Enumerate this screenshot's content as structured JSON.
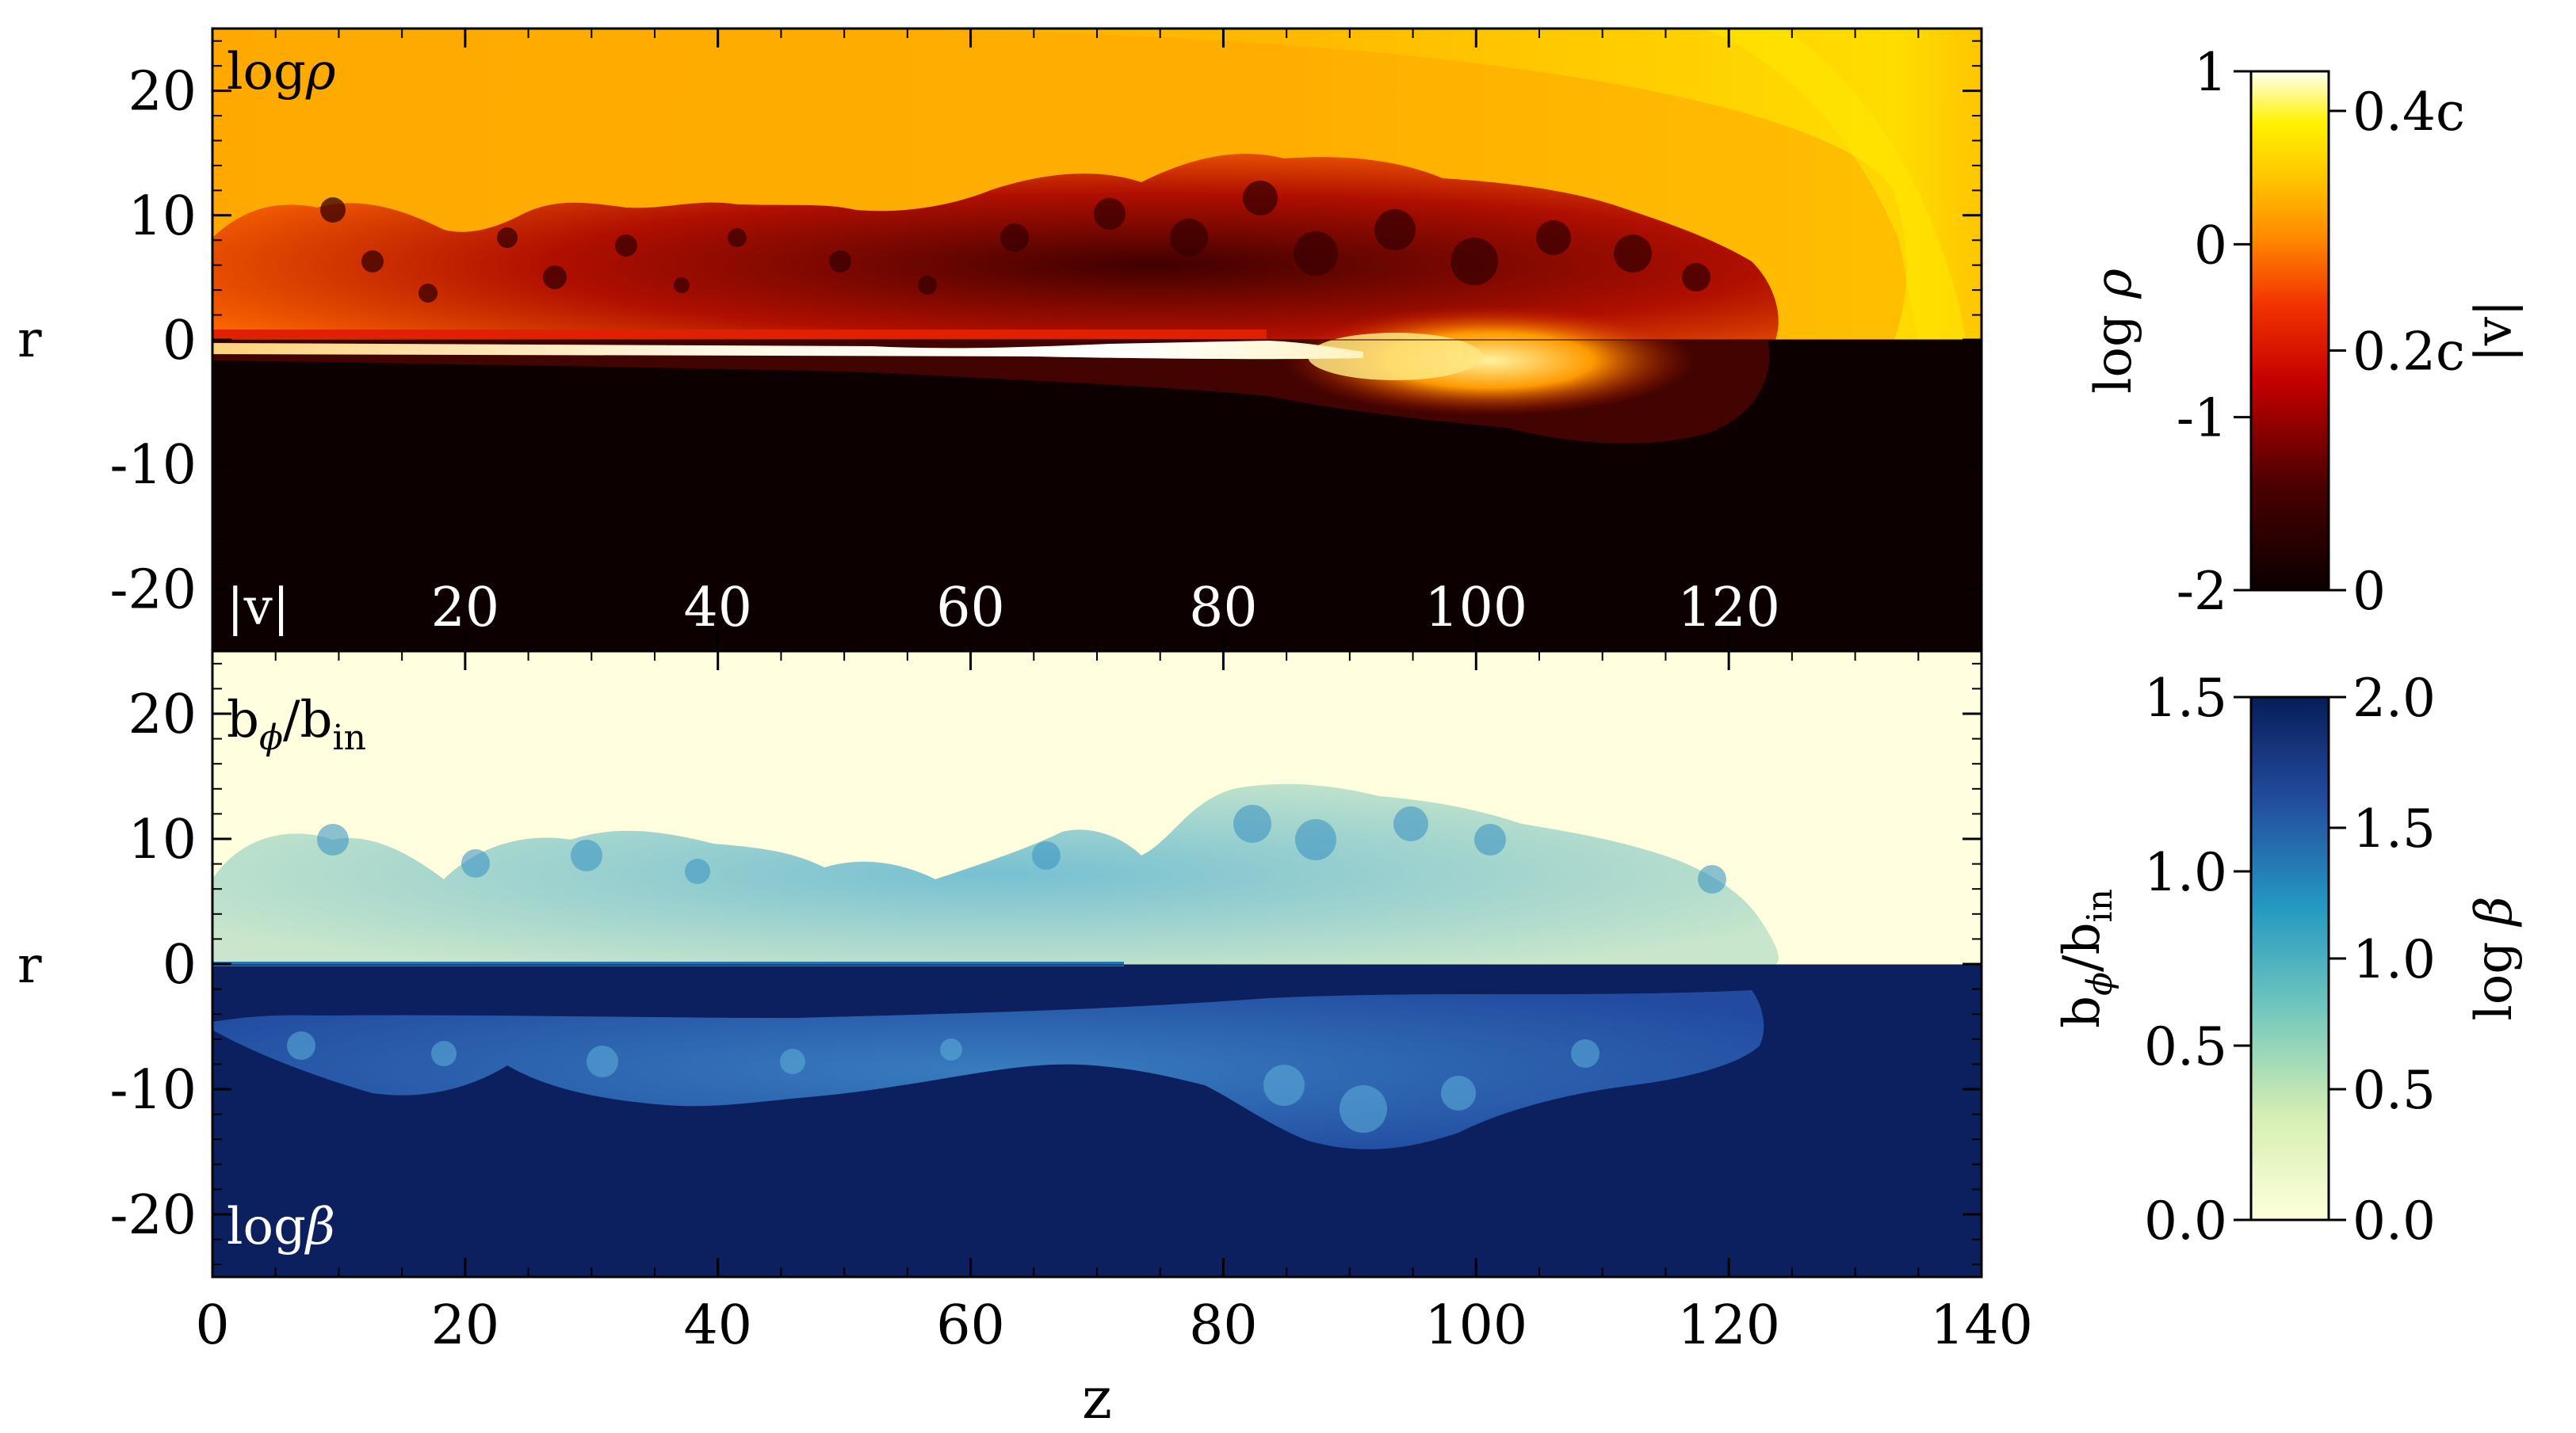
{
  "chart_data": [
    {
      "type": "heatmap",
      "panel": "upper",
      "top_half": {
        "field_label": "logρ",
        "field_main": "log",
        "field_symbol": "ρ",
        "colormap": "hot (black-red-orange-yellow-white)"
      },
      "bottom_half": {
        "field_label": "|v|",
        "colormap": "hot (black-red-orange-yellow-white)"
      },
      "xlabel": "",
      "ylabel": "r",
      "xlim": [
        0,
        140
      ],
      "ylim": [
        -25,
        25
      ],
      "yticks": [
        20,
        10,
        0,
        -10,
        -20
      ],
      "ytick_labels": [
        "20",
        "10",
        "0",
        "-10",
        "-20"
      ],
      "inner_xtick_labels": [
        "20",
        "40",
        "60",
        "80",
        "100",
        "120"
      ],
      "inner_xticks": [
        20,
        40,
        60,
        80,
        100,
        120
      ],
      "features": {
        "ambient_logrho": 0.4,
        "cocoon_extent_z": [
          0,
          125
        ],
        "cocoon_extent_r": [
          0,
          16
        ],
        "bow_shock_head_z": 136,
        "jet_core_extent_z": [
          0,
          88
        ],
        "hot_spot_z": [
          80,
          115
        ]
      }
    },
    {
      "type": "heatmap",
      "panel": "lower",
      "top_half": {
        "field_label": "bϕ/bin",
        "field_main": "b",
        "field_sub1": "ϕ",
        "field_slash": "/b",
        "field_sub2": "in",
        "colormap": "YlGnBu"
      },
      "bottom_half": {
        "field_label": "logβ",
        "field_main": "log",
        "field_symbol": "β",
        "colormap": "YlGnBu"
      },
      "xlabel": "z",
      "ylabel": "r",
      "xlim": [
        0,
        140
      ],
      "ylim": [
        -25,
        25
      ],
      "xticks": [
        0,
        20,
        40,
        60,
        80,
        100,
        120,
        140
      ],
      "xtick_labels": [
        "0",
        "20",
        "40",
        "60",
        "80",
        "100",
        "120",
        "140"
      ],
      "yticks": [
        20,
        10,
        0,
        -10,
        -20
      ],
      "ytick_labels": [
        "20",
        "10",
        "0",
        "-10",
        "-20"
      ],
      "features": {
        "ambient_bphi": 0.0,
        "ambient_logbeta": 2.0,
        "structure_extent_z": [
          0,
          125
        ],
        "structure_extent_r": [
          0,
          16
        ]
      }
    },
    {
      "type": "colorbar",
      "colormap": "hot",
      "left_label": {
        "main": "log",
        "symbol": "ρ"
      },
      "left_range": [
        -2,
        1
      ],
      "left_ticks": [
        "1",
        "0",
        "-1",
        "-2"
      ],
      "left_tick_values": [
        1,
        0,
        -1,
        -2
      ],
      "right_label": "|v|",
      "right_ticks": [
        "0.4c",
        "0.2c",
        "0"
      ],
      "right_tick_values": [
        0.4,
        0.2,
        0
      ]
    },
    {
      "type": "colorbar",
      "colormap": "YlGnBu",
      "left_label": {
        "main": "b",
        "sub1": "ϕ",
        "slash": "/b",
        "sub2": "in"
      },
      "left_range": [
        0,
        1.5
      ],
      "left_ticks": [
        "1.5",
        "1.0",
        "0.5",
        "0.0"
      ],
      "left_tick_values": [
        1.5,
        1.0,
        0.5,
        0.0
      ],
      "right_label": {
        "main": "log",
        "symbol": "β"
      },
      "right_range": [
        0,
        2
      ],
      "right_ticks": [
        "2.0",
        "1.5",
        "1.0",
        "0.5",
        "0.0"
      ],
      "right_tick_values": [
        2.0,
        1.5,
        1.0,
        0.5,
        0.0
      ]
    }
  ]
}
